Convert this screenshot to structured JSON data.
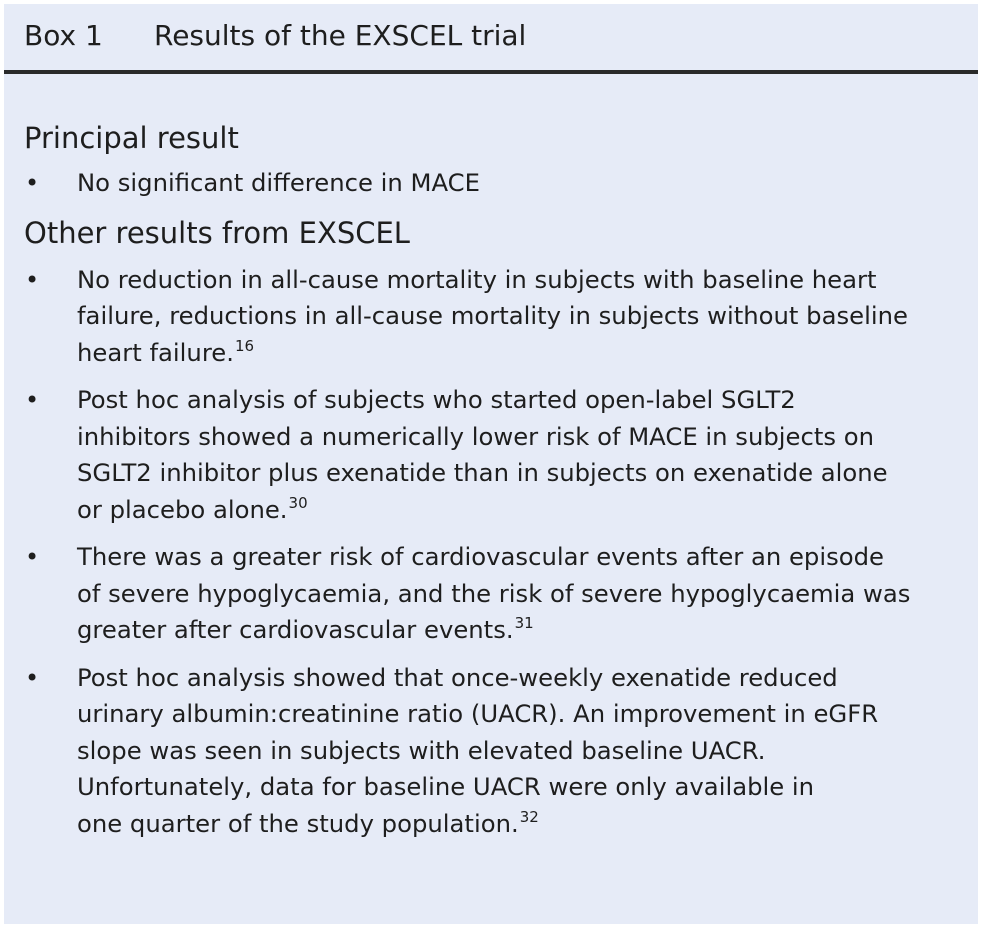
{
  "box": {
    "label": "Box 1",
    "title": "Results of the EXSCEL trial",
    "background_color": "#e6ebf7",
    "rule_color": "#2a2a2a"
  },
  "principal": {
    "heading": "Principal result",
    "items": [
      {
        "text": "No significant difference in MACE",
        "ref": ""
      }
    ]
  },
  "other": {
    "heading": "Other results from EXSCEL",
    "items": [
      {
        "lines": [
          "No reduction in all-cause mortality in subjects with baseline heart",
          "failure, reductions in all-cause mortality in subjects without baseline",
          "heart failure."
        ],
        "ref": "16"
      },
      {
        "lines": [
          "Post hoc analysis of subjects who started open-label SGLT2",
          "inhibitors showed a numerically lower risk of MACE in subjects on",
          "SGLT2 inhibitor plus exenatide than in subjects on exenatide alone",
          "or placebo alone."
        ],
        "ref": "30"
      },
      {
        "lines": [
          "There was a greater risk of cardiovascular events after an episode",
          "of severe hypoglycaemia, and the risk of severe hypoglycaemia was",
          "greater after cardiovascular events."
        ],
        "ref": "31"
      },
      {
        "lines": [
          "Post hoc analysis showed that once-weekly exenatide reduced",
          "urinary albumin:creatinine ratio (UACR). An improvement in eGFR",
          "slope was seen in subjects with elevated baseline UACR.",
          "Unfortunately, data for baseline UACR were only available in",
          "one quarter of the study population."
        ],
        "ref": "32"
      }
    ]
  }
}
